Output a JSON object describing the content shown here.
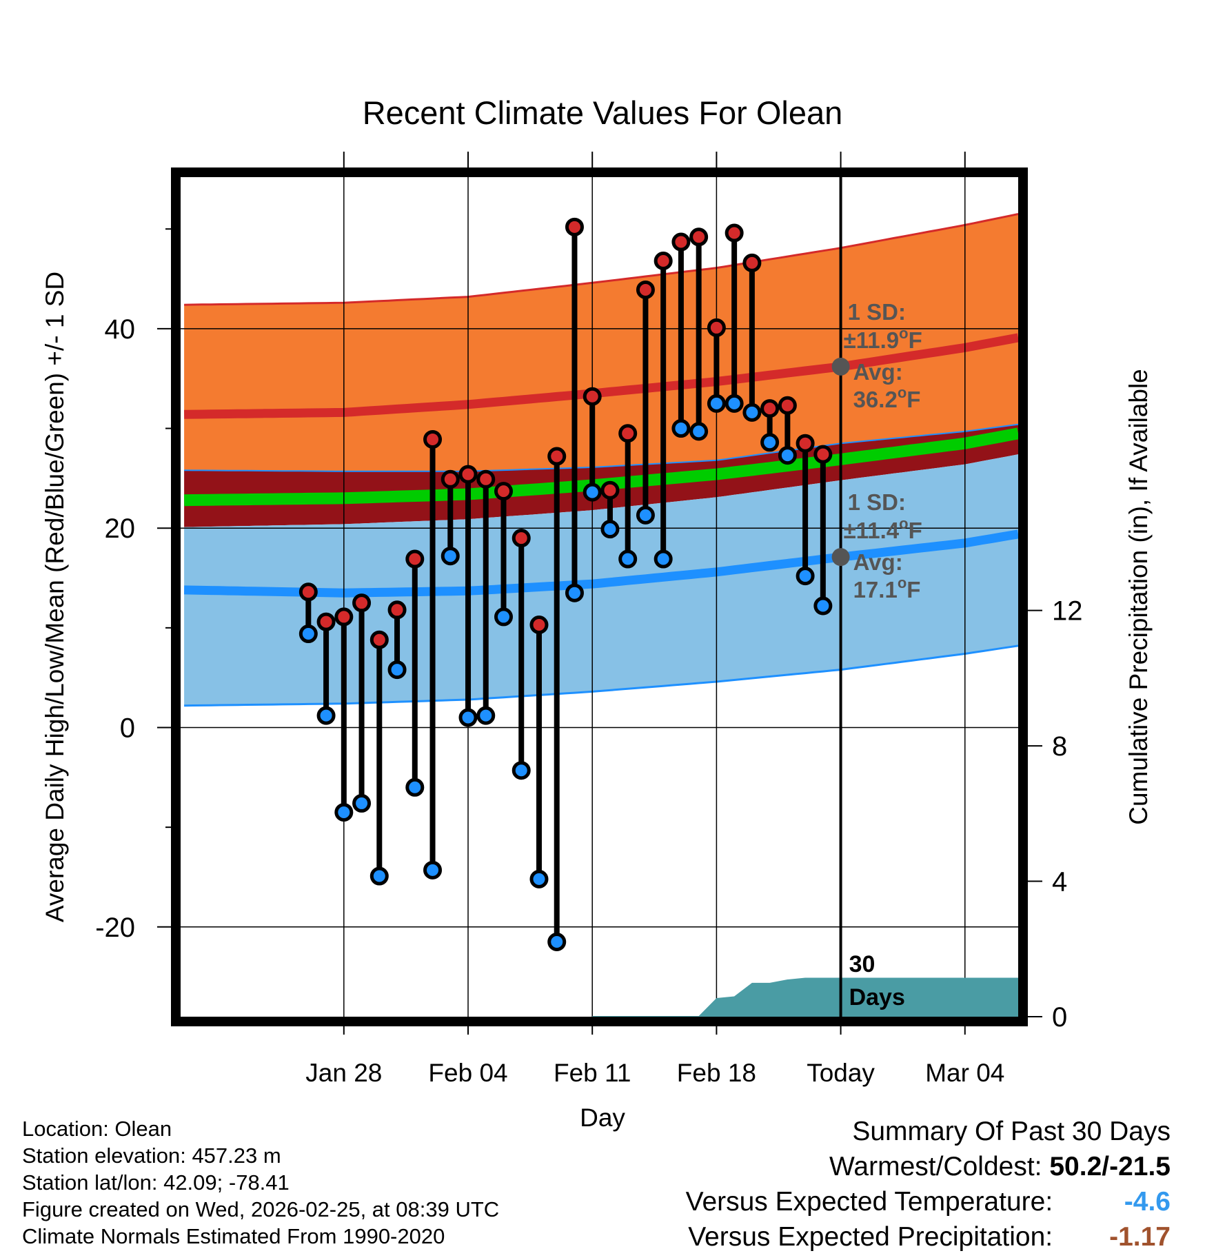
{
  "chart_data": {
    "type": "line",
    "title": "Recent Climate Values For Olean",
    "xlabel": "Day",
    "ylabel": "Average Daily High/Low/Mean (Red/Blue/Green) +/- 1 SD",
    "ylabel_right": "Cumulative Precipitation (in), If Available",
    "x_ticks": [
      "Jan 28",
      "Feb 04",
      "Feb 11",
      "Feb 18",
      "Today",
      "Mar 04"
    ],
    "x_range_days": [
      -37.2,
      10
    ],
    "x_tick_days": [
      -28,
      -21,
      -14,
      -7,
      0,
      7
    ],
    "ylim": [
      -29,
      55.2
    ],
    "y_ticks": [
      -20,
      0,
      20,
      40
    ],
    "y_minor_ticks": [
      -10,
      10,
      30,
      50
    ],
    "y2lim": [
      0,
      24.8
    ],
    "y2_ticks": [
      0,
      4,
      8,
      12
    ],
    "normals": {
      "high_avg": {
        "x": [
          -37,
          -28,
          -21,
          -14,
          -7,
          0,
          7,
          10
        ],
        "y": [
          31.4,
          31.6,
          32.4,
          33.5,
          34.7,
          36.2,
          38.1,
          39.1
        ]
      },
      "high_upper": {
        "x": [
          -37,
          -28,
          -21,
          -14,
          -7,
          0,
          7,
          10
        ],
        "y": [
          42.4,
          42.6,
          43.2,
          44.6,
          46.1,
          48.1,
          50.4,
          51.5
        ]
      },
      "high_lower": {
        "x": [
          -37,
          -28,
          -21,
          -14,
          -7,
          0,
          7,
          10
        ],
        "y": [
          25.8,
          25.7,
          25.7,
          26.1,
          26.8,
          28.5,
          29.7,
          30.4
        ]
      },
      "mean_avg": {
        "x": [
          -37,
          -28,
          -21,
          -14,
          -7,
          0,
          7,
          10
        ],
        "y": [
          22.8,
          23.0,
          23.4,
          24.3,
          25.4,
          26.9,
          28.5,
          29.5
        ]
      },
      "low_upper": {
        "x": [
          -37,
          -28,
          -21,
          -14,
          -7,
          0,
          7,
          10
        ],
        "y": [
          20.1,
          20.4,
          20.9,
          21.8,
          23.1,
          24.8,
          26.4,
          27.4
        ]
      },
      "low_avg": {
        "x": [
          -37,
          -28,
          -21,
          -14,
          -7,
          0,
          7,
          10
        ],
        "y": [
          13.8,
          13.5,
          13.7,
          14.4,
          15.6,
          17.1,
          18.5,
          19.4
        ]
      },
      "low_lower": {
        "x": [
          -37,
          -28,
          -21,
          -14,
          -7,
          0,
          7,
          10
        ],
        "y": [
          2.2,
          2.4,
          2.8,
          3.6,
          4.6,
          5.8,
          7.4,
          8.2
        ]
      }
    },
    "observations": {
      "day": [
        -30,
        -29,
        -28,
        -27,
        -26,
        -25,
        -24,
        -23,
        -22,
        -21,
        -20,
        -19,
        -18,
        -17,
        -16,
        -15,
        -14,
        -13,
        -12,
        -11,
        -10,
        -9,
        -8,
        -7,
        -6,
        -5,
        -4,
        -3,
        -2,
        -1
      ],
      "high": [
        13.6,
        10.6,
        11.1,
        12.5,
        8.8,
        11.8,
        16.9,
        28.9,
        24.9,
        25.4,
        24.9,
        23.7,
        19.0,
        10.3,
        27.2,
        50.2,
        33.2,
        23.8,
        29.5,
        43.9,
        46.8,
        48.7,
        49.2,
        40.1,
        49.6,
        46.6,
        32.0,
        32.3,
        28.5,
        27.4
      ],
      "low": [
        9.4,
        1.2,
        -8.5,
        -7.6,
        -14.9,
        5.8,
        -6.0,
        -14.3,
        17.2,
        1.0,
        1.2,
        11.1,
        -4.3,
        -15.2,
        -21.5,
        13.5,
        23.6,
        19.9,
        16.9,
        21.3,
        16.9,
        30.0,
        29.7,
        32.5,
        32.5,
        31.6,
        28.6,
        27.3,
        15.2,
        12.2
      ]
    },
    "precip_cumulative": {
      "x": [
        -14,
        -13,
        -8,
        -7,
        -6,
        -5,
        -4,
        -3,
        -2,
        -1,
        0,
        10
      ],
      "y": [
        0.02,
        0.02,
        0.02,
        0.55,
        0.6,
        1.0,
        1.0,
        1.1,
        1.15,
        1.15,
        1.15,
        1.15
      ]
    },
    "annotations": {
      "high_sd_label": "1 SD:",
      "high_sd_value": "±11.9",
      "high_avg_label": "Avg:",
      "high_avg_value": "36.2",
      "low_sd_label": "1 SD:",
      "low_sd_value": "±11.4",
      "low_avg_label": "Avg:",
      "low_avg_value": "17.1",
      "degree_symbol": "o",
      "unit": "F",
      "days_count": "30",
      "days_label": "Days"
    },
    "colors": {
      "high_band": "#f47b30",
      "high_line": "#d42a2a",
      "mean_band": "#931218",
      "mean_line": "#00cc00",
      "low_band": "#87c1e6",
      "low_line": "#1e90ff",
      "precip": "#4a9ca4",
      "high_marker": "#d42a2a",
      "low_marker": "#1e90ff",
      "annotation": "#555555"
    }
  },
  "footer": {
    "location": "Location: Olean",
    "elevation": "Station elevation: 457.23 m",
    "latlon": "Station lat/lon: 42.09; -78.41",
    "created": "Figure created on Wed, 2026-02-25, at 08:39 UTC",
    "normals": "Climate Normals Estimated From 1990-2020"
  },
  "summary": {
    "title": "Summary Of Past 30 Days",
    "warm_cold_label": "Warmest/Coldest:",
    "warm_cold_value": "50.2/-21.5",
    "temp_label": "Versus Expected Temperature:",
    "temp_value": "-4.6",
    "temp_color": "#3399ee",
    "precip_label": "Versus Expected Precipitation:",
    "precip_value": "-1.17",
    "precip_color": "#a0522d"
  }
}
